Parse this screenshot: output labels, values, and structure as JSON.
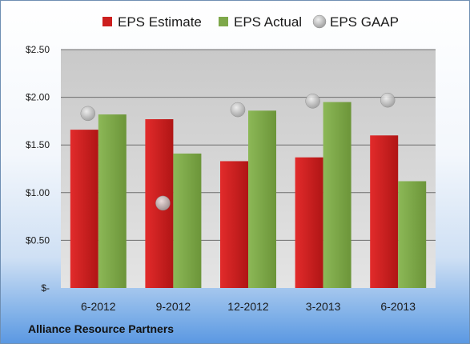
{
  "chart_data": {
    "type": "bar",
    "categories": [
      "6-2012",
      "9-2012",
      "12-2012",
      "3-2013",
      "6-2013"
    ],
    "series": [
      {
        "name": "EPS Estimate",
        "kind": "bar",
        "color": "#cc1f1f",
        "values": [
          1.66,
          1.77,
          1.33,
          1.37,
          1.6
        ]
      },
      {
        "name": "EPS Actual",
        "kind": "bar",
        "color": "#7ea84a",
        "values": [
          1.82,
          1.41,
          1.86,
          1.95,
          1.12
        ]
      },
      {
        "name": "EPS GAAP",
        "kind": "scatter",
        "color": "#b5b5b5",
        "values": [
          1.83,
          0.89,
          1.87,
          1.96,
          1.97
        ]
      }
    ],
    "yticks": [
      "$-",
      "$0.50",
      "$1.00",
      "$1.50",
      "$2.00",
      "$2.50"
    ],
    "ylim": [
      0,
      2.5
    ],
    "grid": true,
    "legend_position": "top"
  },
  "company_name": "Alliance Resource Partners"
}
